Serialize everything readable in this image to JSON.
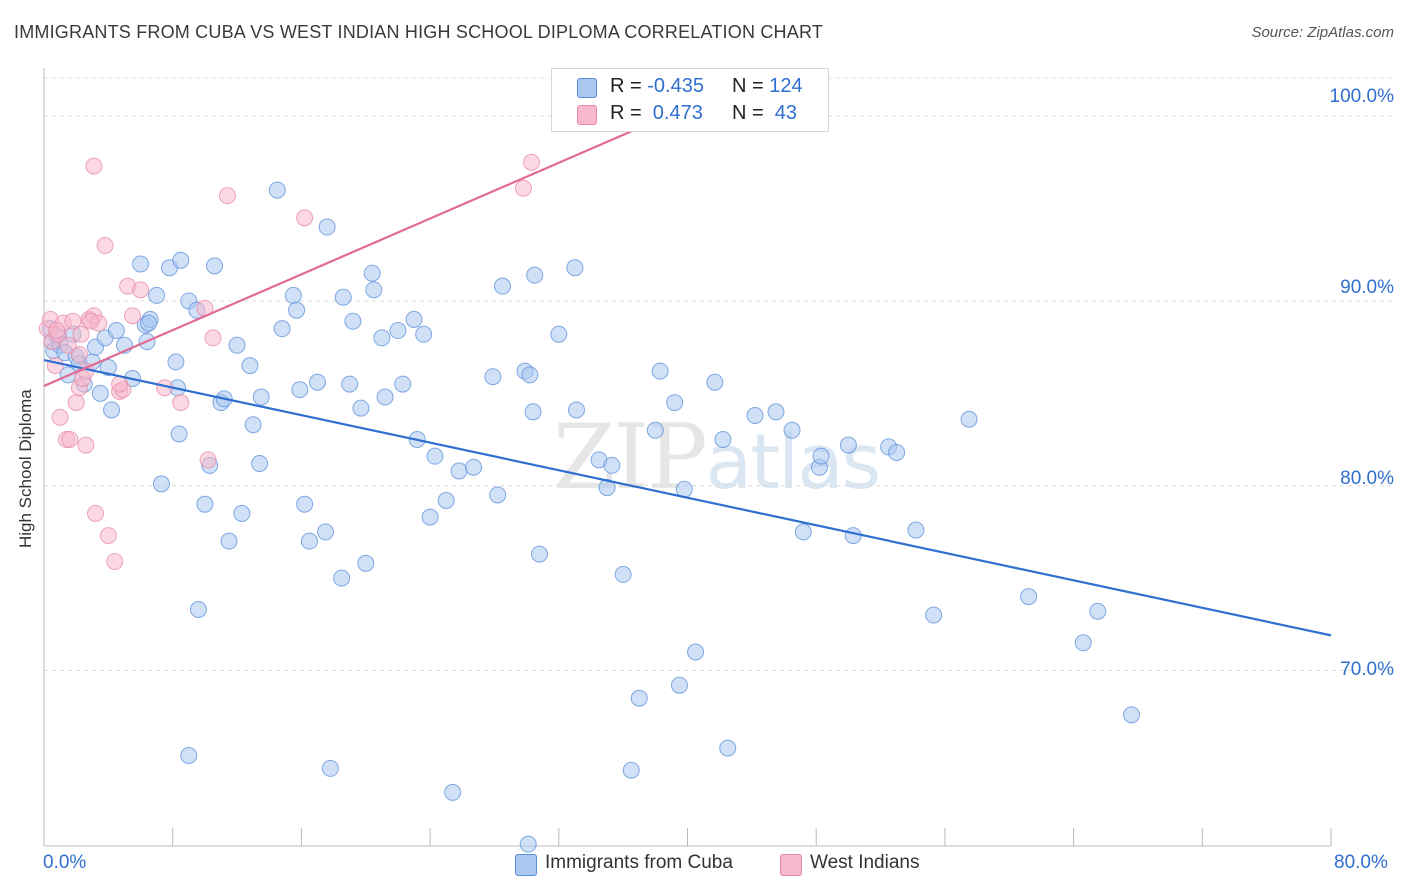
{
  "header": {
    "title": "IMMIGRANTS FROM CUBA VS WEST INDIAN HIGH SCHOOL DIPLOMA CORRELATION CHART",
    "source": "Source: ZipAtlas.com"
  },
  "watermark": {
    "zip": "ZIP",
    "atlas": "atlas"
  },
  "legend_top": {
    "rows": [
      {
        "r_label": "R =",
        "r_value": "-0.435",
        "n_label": "N =",
        "n_value": "124",
        "color": "#aac8f0"
      },
      {
        "r_label": "R =",
        "r_value": " 0.473",
        "n_label": "N =",
        "n_value": " 43",
        "color": "#f7b8cb"
      }
    ]
  },
  "legend_bottom": [
    {
      "label": "Immigrants from Cuba",
      "color": "#aac8f0"
    },
    {
      "label": "West Indians",
      "color": "#f7b8cb"
    }
  ],
  "chart_data": {
    "type": "scatter",
    "title": "IMMIGRANTS FROM CUBA VS WEST INDIAN HIGH SCHOOL DIPLOMA CORRELATION CHART",
    "xlabel": "",
    "ylabel": "High School Diploma",
    "xlim": [
      0,
      80
    ],
    "ylim": [
      60.5,
      102.5
    ],
    "x_tick_labels": [
      "0.0%",
      "80.0%"
    ],
    "y_ticks": [
      70,
      80,
      90,
      100
    ],
    "y_tick_labels": [
      "70.0%",
      "80.0%",
      "90.0%",
      "100.0%"
    ],
    "grid": true,
    "legend_placement": "top-center",
    "series": [
      {
        "name": "Immigrants from Cuba",
        "color": "#5b8fd9",
        "fill": "#aac8f0",
        "trend": {
          "x": [
            0,
            80
          ],
          "y": [
            86.8,
            71.9
          ],
          "color": "#2f6fd0"
        },
        "points": [
          [
            0.4,
            88.5
          ],
          [
            0.5,
            87.8
          ],
          [
            0.6,
            87.3
          ],
          [
            0.8,
            88.1
          ],
          [
            1.0,
            87.6
          ],
          [
            1.3,
            87.2
          ],
          [
            1.5,
            86.0
          ],
          [
            1.8,
            88.2
          ],
          [
            2.0,
            87.0
          ],
          [
            2.2,
            86.6
          ],
          [
            2.5,
            85.5
          ],
          [
            3.0,
            86.7
          ],
          [
            3.2,
            87.5
          ],
          [
            3.5,
            85.0
          ],
          [
            3.8,
            88.0
          ],
          [
            4.0,
            86.4
          ],
          [
            4.2,
            84.1
          ],
          [
            4.5,
            88.4
          ],
          [
            5.0,
            87.6
          ],
          [
            5.5,
            85.8
          ],
          [
            6.0,
            92.0
          ],
          [
            6.3,
            88.7
          ],
          [
            6.6,
            89.0
          ],
          [
            7.0,
            90.3
          ],
          [
            7.3,
            80.1
          ],
          [
            7.8,
            91.8
          ],
          [
            8.2,
            86.7
          ],
          [
            8.4,
            82.8
          ],
          [
            8.5,
            92.2
          ],
          [
            9.0,
            90.0
          ],
          [
            9.5,
            89.5
          ],
          [
            10.0,
            79.0
          ],
          [
            10.3,
            81.1
          ],
          [
            10.6,
            91.9
          ],
          [
            11.0,
            84.5
          ],
          [
            11.2,
            84.7
          ],
          [
            11.5,
            77.0
          ],
          [
            12.0,
            87.6
          ],
          [
            12.3,
            78.5
          ],
          [
            12.8,
            86.5
          ],
          [
            13.0,
            83.3
          ],
          [
            13.4,
            81.2
          ],
          [
            13.5,
            84.8
          ],
          [
            14.5,
            96.0
          ],
          [
            14.8,
            88.5
          ],
          [
            15.5,
            90.3
          ],
          [
            15.7,
            89.5
          ],
          [
            15.9,
            85.2
          ],
          [
            16.2,
            79.0
          ],
          [
            16.5,
            77.0
          ],
          [
            17.0,
            85.6
          ],
          [
            17.5,
            77.5
          ],
          [
            17.6,
            94.0
          ],
          [
            18.5,
            75.0
          ],
          [
            18.6,
            90.2
          ],
          [
            19.0,
            85.5
          ],
          [
            19.2,
            88.9
          ],
          [
            19.7,
            84.2
          ],
          [
            20.0,
            75.8
          ],
          [
            20.4,
            91.5
          ],
          [
            20.5,
            90.6
          ],
          [
            21.0,
            88.0
          ],
          [
            21.2,
            84.8
          ],
          [
            22.0,
            88.4
          ],
          [
            22.3,
            85.5
          ],
          [
            23.0,
            89.0
          ],
          [
            23.2,
            82.5
          ],
          [
            23.6,
            88.2
          ],
          [
            24.0,
            78.3
          ],
          [
            24.3,
            81.6
          ],
          [
            25.0,
            79.2
          ],
          [
            25.8,
            80.8
          ],
          [
            26.7,
            81.0
          ],
          [
            28.2,
            79.5
          ],
          [
            27.9,
            85.9
          ],
          [
            28.5,
            90.8
          ],
          [
            29.9,
            86.2
          ],
          [
            30.2,
            86.0
          ],
          [
            30.4,
            84.0
          ],
          [
            30.5,
            91.4
          ],
          [
            30.8,
            76.3
          ],
          [
            32.0,
            88.2
          ],
          [
            33.0,
            91.8
          ],
          [
            34.5,
            81.4
          ],
          [
            35.0,
            79.9
          ],
          [
            35.3,
            81.1
          ],
          [
            36.0,
            75.2
          ],
          [
            37.0,
            68.5
          ],
          [
            38.0,
            83.0
          ],
          [
            38.3,
            86.2
          ],
          [
            39.2,
            84.5
          ],
          [
            39.5,
            69.2
          ],
          [
            39.8,
            79.8
          ],
          [
            40.5,
            71.0
          ],
          [
            41.7,
            85.6
          ],
          [
            42.2,
            82.5
          ],
          [
            42.5,
            65.8
          ],
          [
            44.2,
            83.8
          ],
          [
            45.5,
            84.0
          ],
          [
            46.5,
            83.0
          ],
          [
            47.2,
            77.5
          ],
          [
            48.2,
            81.0
          ],
          [
            48.3,
            81.6
          ],
          [
            50.0,
            82.2
          ],
          [
            50.3,
            77.3
          ],
          [
            52.5,
            82.1
          ],
          [
            53.0,
            81.8
          ],
          [
            54.2,
            77.6
          ],
          [
            55.3,
            73.0
          ],
          [
            57.5,
            83.6
          ],
          [
            61.2,
            74.0
          ],
          [
            64.6,
            71.5
          ],
          [
            65.5,
            73.2
          ],
          [
            67.6,
            67.6
          ],
          [
            9.6,
            73.3
          ],
          [
            9.0,
            65.4
          ],
          [
            17.8,
            64.7
          ],
          [
            25.4,
            63.4
          ],
          [
            36.5,
            64.6
          ],
          [
            30.1,
            60.6
          ],
          [
            6.5,
            88.8
          ],
          [
            8.3,
            85.3
          ],
          [
            33.1,
            84.1
          ],
          [
            6.4,
            87.8
          ]
        ]
      },
      {
        "name": "West Indians",
        "color": "#e58aa8",
        "fill": "#f7b8cb",
        "trend": {
          "x": [
            0,
            40
          ],
          "y": [
            85.4,
            100.5
          ],
          "color": "#e06a93"
        },
        "points": [
          [
            0.2,
            88.5
          ],
          [
            0.4,
            89.0
          ],
          [
            0.5,
            87.8
          ],
          [
            0.7,
            86.5
          ],
          [
            0.9,
            88.2
          ],
          [
            1.0,
            83.7
          ],
          [
            1.2,
            88.8
          ],
          [
            1.4,
            82.5
          ],
          [
            1.6,
            82.5
          ],
          [
            1.8,
            88.9
          ],
          [
            2.0,
            84.5
          ],
          [
            2.2,
            85.3
          ],
          [
            2.3,
            88.2
          ],
          [
            2.4,
            85.8
          ],
          [
            2.6,
            86.2
          ],
          [
            2.8,
            89.0
          ],
          [
            3.1,
            89.2
          ],
          [
            3.2,
            78.5
          ],
          [
            3.4,
            88.8
          ],
          [
            3.8,
            93.0
          ],
          [
            4.0,
            77.3
          ],
          [
            4.4,
            75.9
          ],
          [
            4.7,
            85.1
          ],
          [
            4.9,
            85.2
          ],
          [
            5.2,
            90.8
          ],
          [
            5.5,
            89.2
          ],
          [
            6.0,
            90.6
          ],
          [
            7.5,
            85.3
          ],
          [
            8.5,
            84.5
          ],
          [
            10.0,
            89.6
          ],
          [
            10.5,
            88.0
          ],
          [
            10.2,
            81.4
          ],
          [
            11.4,
            95.7
          ],
          [
            16.2,
            94.5
          ],
          [
            29.8,
            96.1
          ],
          [
            30.3,
            97.5
          ],
          [
            3.1,
            97.3
          ],
          [
            2.2,
            87.1
          ],
          [
            2.9,
            88.9
          ],
          [
            4.7,
            85.5
          ],
          [
            0.8,
            88.4
          ],
          [
            1.5,
            87.6
          ],
          [
            2.6,
            82.2
          ]
        ]
      }
    ]
  }
}
